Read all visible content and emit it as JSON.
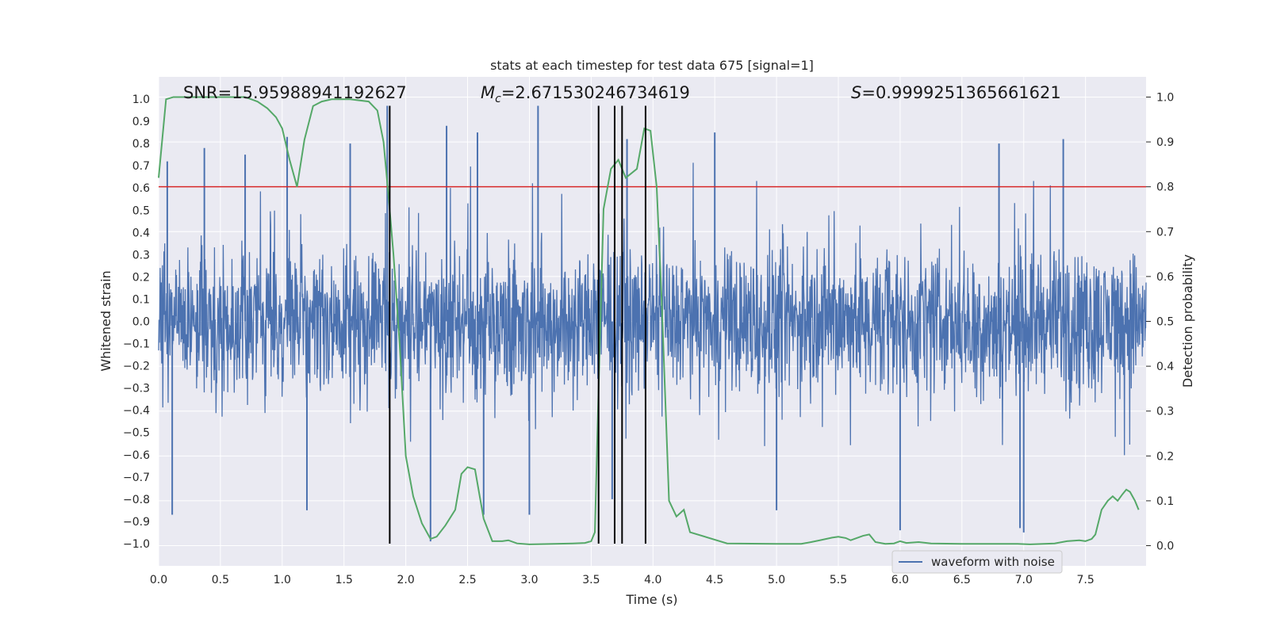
{
  "chart_data": {
    "type": "line",
    "title": "stats at each timestep for test data 675 [signal=1]",
    "xlabel": "Time (s)",
    "ylabel_left": "Whitened strain",
    "ylabel_right": "Detection probability",
    "xlim": [
      0.0,
      7.99
    ],
    "ylim_left": [
      -1.1,
      1.1
    ],
    "ylim_right": [
      -0.045,
      1.045
    ],
    "x_ticks": [
      0.0,
      0.5,
      1.0,
      1.5,
      2.0,
      2.5,
      3.0,
      3.5,
      4.0,
      4.5,
      5.0,
      5.5,
      6.0,
      6.5,
      7.0,
      7.5
    ],
    "x_tick_labels": [
      "0.0",
      "0.5",
      "1.0",
      "1.5",
      "2.0",
      "2.5",
      "3.0",
      "3.5",
      "4.0",
      "4.5",
      "5.0",
      "5.5",
      "6.0",
      "6.5",
      "7.0",
      "7.5"
    ],
    "y_left_ticks": [
      1.0,
      0.9,
      0.8,
      0.7,
      0.6,
      0.5,
      0.4,
      0.3,
      0.2,
      0.1,
      0.0,
      -0.1,
      -0.2,
      -0.3,
      -0.4,
      -0.5,
      -0.6,
      -0.7,
      -0.8,
      -0.9,
      -1.0
    ],
    "y_left_tick_labels": [
      "1.0",
      "0.9",
      "0.8",
      "0.7",
      "0.6",
      "0.5",
      "0.4",
      "0.3",
      "0.2",
      "0.1",
      "0.0",
      "−0.1",
      "−0.2",
      "−0.3",
      "−0.4",
      "−0.5",
      "−0.6",
      "−0.7",
      "−0.8",
      "−0.9",
      "−1.0"
    ],
    "y_right_ticks": [
      1.0,
      0.9,
      0.8,
      0.7,
      0.6,
      0.5,
      0.4,
      0.3,
      0.2,
      0.1,
      0.0
    ],
    "y_right_tick_labels": [
      "1.0",
      "0.9",
      "0.8",
      "0.7",
      "0.6",
      "0.5",
      "0.4",
      "0.3",
      "0.2",
      "0.1",
      "0.0"
    ],
    "annotations": {
      "snr": "SNR=15.95988941192627",
      "mc_symbol": "M",
      "mc_sub": "c",
      "mc_value": "=2.671530246734619",
      "s_symbol": "S",
      "s_value": "=0.9999251365661621"
    },
    "threshold": {
      "axis": "right",
      "value": 0.8,
      "color": "#d62728"
    },
    "event_markers_x": [
      1.87,
      3.56,
      3.69,
      3.75,
      3.94
    ],
    "event_marker_color": "#000000",
    "legend": {
      "label": "waveform with noise",
      "position": "lower right"
    },
    "series": [
      {
        "name": "waveform with noise",
        "axis": "left",
        "color": "#4c72b0",
        "description": "noise samples, typical amplitude about 0.35, peaks near +0.97 and -0.97",
        "noise_envelope": 0.38,
        "peaks": [
          {
            "x": 0.07,
            "y": 0.72
          },
          {
            "x": 0.37,
            "y": 0.78
          },
          {
            "x": 0.7,
            "y": 0.75
          },
          {
            "x": 1.04,
            "y": 0.83
          },
          {
            "x": 1.55,
            "y": 0.8
          },
          {
            "x": 1.85,
            "y": 0.97
          },
          {
            "x": 2.33,
            "y": 0.88
          },
          {
            "x": 2.58,
            "y": 0.85
          },
          {
            "x": 3.07,
            "y": 0.97
          },
          {
            "x": 3.79,
            "y": 0.82
          },
          {
            "x": 4.5,
            "y": 0.85
          },
          {
            "x": 6.8,
            "y": 0.8
          },
          {
            "x": 7.32,
            "y": 0.82
          },
          {
            "x": 0.11,
            "y": -0.87
          },
          {
            "x": 1.2,
            "y": -0.85
          },
          {
            "x": 2.2,
            "y": -0.99
          },
          {
            "x": 2.63,
            "y": -0.87
          },
          {
            "x": 3.0,
            "y": -0.87
          },
          {
            "x": 3.67,
            "y": -0.8
          },
          {
            "x": 5.0,
            "y": -0.85
          },
          {
            "x": 6.0,
            "y": -0.94
          },
          {
            "x": 6.97,
            "y": -0.93
          },
          {
            "x": 7.0,
            "y": -0.95
          }
        ]
      },
      {
        "name": "detection probability",
        "axis": "right",
        "color": "#55a868",
        "x": [
          0.0,
          0.06,
          0.12,
          0.3,
          0.5,
          0.7,
          0.8,
          0.88,
          0.95,
          1.0,
          1.06,
          1.12,
          1.18,
          1.25,
          1.32,
          1.4,
          1.55,
          1.7,
          1.77,
          1.82,
          1.86,
          1.9,
          1.95,
          2.0,
          2.06,
          2.13,
          2.2,
          2.25,
          2.32,
          2.4,
          2.45,
          2.5,
          2.56,
          2.63,
          2.7,
          2.78,
          2.83,
          2.9,
          3.0,
          3.2,
          3.35,
          3.45,
          3.5,
          3.53,
          3.56,
          3.6,
          3.66,
          3.72,
          3.78,
          3.87,
          3.93,
          3.98,
          4.03,
          4.07,
          4.13,
          4.19,
          4.25,
          4.3,
          4.6,
          5.0,
          5.2,
          5.28,
          5.35,
          5.45,
          5.5,
          5.56,
          5.6,
          5.7,
          5.75,
          5.8,
          5.88,
          5.95,
          6.0,
          6.05,
          6.15,
          6.25,
          6.5,
          6.8,
          6.95,
          7.05,
          7.25,
          7.35,
          7.45,
          7.5,
          7.55,
          7.58,
          7.63,
          7.68,
          7.72,
          7.76,
          7.8,
          7.83,
          7.86,
          7.88,
          7.9,
          7.93
        ],
        "values": [
          0.82,
          0.995,
          1.0,
          1.0,
          1.0,
          1.0,
          0.99,
          0.975,
          0.955,
          0.93,
          0.86,
          0.8,
          0.905,
          0.98,
          0.99,
          0.995,
          0.995,
          0.99,
          0.97,
          0.9,
          0.78,
          0.65,
          0.45,
          0.2,
          0.11,
          0.05,
          0.015,
          0.02,
          0.045,
          0.08,
          0.16,
          0.175,
          0.17,
          0.06,
          0.01,
          0.01,
          0.012,
          0.005,
          0.003,
          0.004,
          0.005,
          0.006,
          0.01,
          0.03,
          0.35,
          0.75,
          0.84,
          0.86,
          0.82,
          0.84,
          0.93,
          0.925,
          0.8,
          0.55,
          0.1,
          0.065,
          0.08,
          0.03,
          0.005,
          0.004,
          0.004,
          0.008,
          0.012,
          0.018,
          0.02,
          0.017,
          0.012,
          0.022,
          0.025,
          0.008,
          0.004,
          0.005,
          0.01,
          0.006,
          0.008,
          0.005,
          0.004,
          0.004,
          0.004,
          0.003,
          0.005,
          0.01,
          0.012,
          0.01,
          0.015,
          0.025,
          0.08,
          0.1,
          0.11,
          0.1,
          0.115,
          0.125,
          0.12,
          0.11,
          0.1,
          0.08
        ]
      }
    ]
  }
}
